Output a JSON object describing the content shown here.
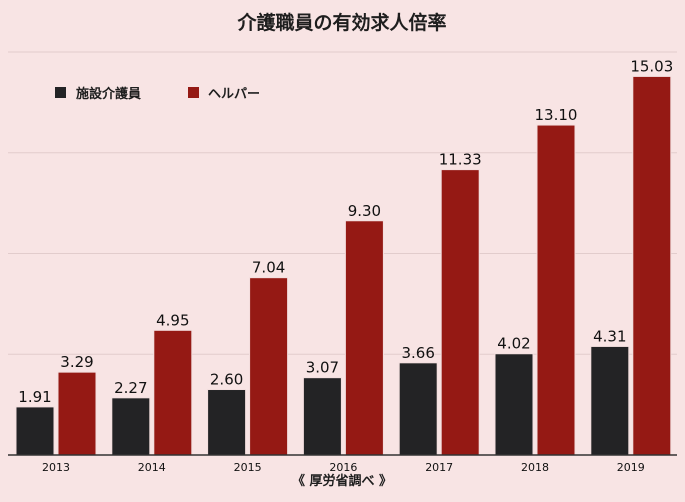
{
  "chart_data": {
    "type": "bar",
    "title": "介護職員の有効求人倍率",
    "categories": [
      "2013",
      "2014",
      "2015",
      "2016",
      "2017",
      "2018",
      "2019"
    ],
    "series": [
      {
        "name": "施設介護員",
        "color": "#232325",
        "values": [
          1.91,
          2.27,
          2.6,
          3.07,
          3.66,
          4.02,
          4.31
        ]
      },
      {
        "name": "ヘルパー",
        "color": "#951914",
        "values": [
          3.29,
          4.95,
          7.04,
          9.3,
          11.33,
          13.1,
          15.03
        ]
      }
    ],
    "ylim": [
      0,
      16
    ],
    "grid": true,
    "gridlines": [
      4,
      8,
      12,
      16
    ],
    "legend_position": "top-left",
    "xlabel": "",
    "ylabel": "",
    "source": "《 厚労省調べ 》"
  }
}
